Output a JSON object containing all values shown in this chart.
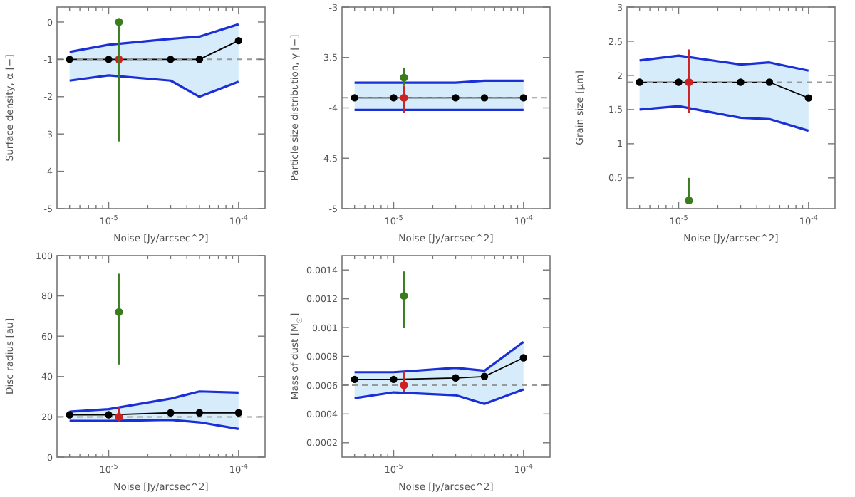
{
  "chart_data": [
    {
      "type": "line",
      "xlabel": "Noise [Jy/arcsec^2]",
      "ylabel": "Surface density, α [−]",
      "log": "x",
      "grid": false,
      "marker": "circle",
      "xlim": [
        4e-06,
        0.00016
      ],
      "xticks": [
        {
          "value": 5e-06,
          "label": null
        },
        {
          "value": 6e-06,
          "label": null
        },
        {
          "value": 7e-06,
          "label": null
        },
        {
          "value": 8e-06,
          "label": null
        },
        {
          "value": 9e-06,
          "label": null
        },
        {
          "value": 1e-05,
          "label": "10$^{-5}$"
        },
        {
          "value": 2e-05,
          "label": null
        },
        {
          "value": 3e-05,
          "label": null
        },
        {
          "value": 4e-05,
          "label": null
        },
        {
          "value": 5e-05,
          "label": null
        },
        {
          "value": 6e-05,
          "label": null
        },
        {
          "value": 7e-05,
          "label": null
        },
        {
          "value": 8e-05,
          "label": null
        },
        {
          "value": 9e-05,
          "label": null
        },
        {
          "value": 0.0001,
          "label": "10$^{-4}$"
        }
      ],
      "ylim": [
        -5,
        0.4
      ],
      "yticks": [
        -5,
        -4,
        -3,
        -2,
        -1,
        0
      ],
      "ref_lines": [
        {
          "axis": "y",
          "value": -1,
          "color": "#999999",
          "line_style": "dashed"
        }
      ],
      "series": [
        {
          "type": "line",
          "color": "#000000",
          "x": [
            5e-06,
            1e-05,
            3e-05,
            5e-05,
            0.0001
          ],
          "values": [
            -1,
            -1,
            -1,
            -1,
            -0.5
          ],
          "lower": [
            -1.57,
            -1.43,
            -1.57,
            -2.0,
            -1.6
          ],
          "upper": [
            -0.8,
            -0.61,
            -0.45,
            -0.39,
            -0.06
          ]
        },
        {
          "type": "line",
          "color": "#1a2fd6",
          "marker": "none",
          "x": [
            5e-06,
            1e-05,
            3e-05,
            5e-05,
            0.0001
          ],
          "values": [
            -1.57,
            -1.43,
            -1.57,
            -2.0,
            -1.6
          ]
        },
        {
          "type": "line",
          "color": "#1a2fd6",
          "marker": "none",
          "x": [
            5e-06,
            1e-05,
            3e-05,
            5e-05,
            0.0001
          ],
          "values": [
            -0.8,
            -0.61,
            -0.45,
            -0.39,
            -0.06
          ]
        },
        {
          "type": "scatter",
          "color": "#cc2222",
          "x": [
            1.2e-05
          ],
          "values": [
            -1
          ],
          "errors": [
            null
          ]
        },
        {
          "type": "scatter",
          "color": "#3a7d1e",
          "x": [
            1.2e-05
          ],
          "values": [
            0
          ],
          "errors": [
            [
              -3.2,
              0
            ]
          ]
        }
      ]
    },
    {
      "type": "line",
      "xlabel": "Noise [Jy/arcsec^2]",
      "ylabel": "Particle size distribution, γ [−]",
      "log": "x",
      "grid": false,
      "marker": "circle",
      "xlim": [
        4e-06,
        0.00016
      ],
      "xticks": [
        {
          "value": 5e-06,
          "label": null
        },
        {
          "value": 6e-06,
          "label": null
        },
        {
          "value": 7e-06,
          "label": null
        },
        {
          "value": 8e-06,
          "label": null
        },
        {
          "value": 9e-06,
          "label": null
        },
        {
          "value": 1e-05,
          "label": "10$^{-5}$"
        },
        {
          "value": 2e-05,
          "label": null
        },
        {
          "value": 3e-05,
          "label": null
        },
        {
          "value": 4e-05,
          "label": null
        },
        {
          "value": 5e-05,
          "label": null
        },
        {
          "value": 6e-05,
          "label": null
        },
        {
          "value": 7e-05,
          "label": null
        },
        {
          "value": 8e-05,
          "label": null
        },
        {
          "value": 9e-05,
          "label": null
        },
        {
          "value": 0.0001,
          "label": "10$^{-4}$"
        }
      ],
      "ylim": [
        -5,
        -3
      ],
      "yticks": [
        -5,
        -4.5,
        -4,
        -3.5,
        -3
      ],
      "ref_lines": [
        {
          "axis": "y",
          "value": -3.9,
          "color": "#999999",
          "line_style": "dashed"
        }
      ],
      "series": [
        {
          "type": "line",
          "color": "#000000",
          "x": [
            5e-06,
            1e-05,
            3e-05,
            5e-05,
            0.0001
          ],
          "values": [
            -3.9,
            -3.9,
            -3.9,
            -3.9,
            -3.9
          ],
          "lower": [
            -4.02,
            -4.02,
            -4.02,
            -4.02,
            -4.02
          ],
          "upper": [
            -3.75,
            -3.75,
            -3.75,
            -3.73,
            -3.73
          ]
        },
        {
          "type": "line",
          "color": "#1a2fd6",
          "marker": "none",
          "x": [
            5e-06,
            1e-05,
            3e-05,
            5e-05,
            0.0001
          ],
          "values": [
            -4.02,
            -4.02,
            -4.02,
            -4.02,
            -4.02
          ]
        },
        {
          "type": "line",
          "color": "#1a2fd6",
          "marker": "none",
          "x": [
            5e-06,
            1e-05,
            3e-05,
            5e-05,
            0.0001
          ],
          "values": [
            -3.75,
            -3.75,
            -3.75,
            -3.73,
            -3.73
          ]
        },
        {
          "type": "scatter",
          "color": "#cc2222",
          "x": [
            1.2e-05
          ],
          "values": [
            -3.9
          ],
          "errors": [
            [
              -4.05,
              -3.78
            ]
          ]
        },
        {
          "type": "scatter",
          "color": "#3a7d1e",
          "x": [
            1.2e-05
          ],
          "values": [
            -3.7
          ],
          "errors": [
            [
              -3.78,
              -3.6
            ]
          ]
        }
      ]
    },
    {
      "type": "line",
      "xlabel": "Noise [Jy/arcsec^2]",
      "ylabel": "Grain size [μm]",
      "log": "x",
      "grid": false,
      "marker": "circle",
      "xlim": [
        4e-06,
        0.00016
      ],
      "xticks": [
        {
          "value": 5e-06,
          "label": null
        },
        {
          "value": 6e-06,
          "label": null
        },
        {
          "value": 7e-06,
          "label": null
        },
        {
          "value": 8e-06,
          "label": null
        },
        {
          "value": 9e-06,
          "label": null
        },
        {
          "value": 1e-05,
          "label": "10$^{-5}$"
        },
        {
          "value": 2e-05,
          "label": null
        },
        {
          "value": 3e-05,
          "label": null
        },
        {
          "value": 4e-05,
          "label": null
        },
        {
          "value": 5e-05,
          "label": null
        },
        {
          "value": 6e-05,
          "label": null
        },
        {
          "value": 7e-05,
          "label": null
        },
        {
          "value": 8e-05,
          "label": null
        },
        {
          "value": 9e-05,
          "label": null
        },
        {
          "value": 0.0001,
          "label": "10$^{-4}$"
        }
      ],
      "ylim": [
        0.05,
        3
      ],
      "yticks": [
        0.5,
        1.0,
        1.5,
        2.0,
        2.5,
        3.0
      ],
      "ref_lines": [
        {
          "axis": "y",
          "value": 1.9,
          "color": "#999999",
          "line_style": "dashed"
        }
      ],
      "series": [
        {
          "type": "line",
          "color": "#000000",
          "x": [
            5e-06,
            1e-05,
            3e-05,
            5e-05,
            0.0001
          ],
          "values": [
            1.9,
            1.9,
            1.9,
            1.9,
            1.67
          ],
          "lower": [
            1.5,
            1.55,
            1.38,
            1.36,
            1.19
          ],
          "upper": [
            2.22,
            2.29,
            2.16,
            2.19,
            2.07
          ]
        },
        {
          "type": "line",
          "color": "#1a2fd6",
          "marker": "none",
          "x": [
            5e-06,
            1e-05,
            3e-05,
            5e-05,
            0.0001
          ],
          "values": [
            1.5,
            1.55,
            1.38,
            1.36,
            1.19
          ]
        },
        {
          "type": "line",
          "color": "#1a2fd6",
          "marker": "none",
          "x": [
            5e-06,
            1e-05,
            3e-05,
            5e-05,
            0.0001
          ],
          "values": [
            2.22,
            2.29,
            2.16,
            2.19,
            2.07
          ]
        },
        {
          "type": "scatter",
          "color": "#cc2222",
          "x": [
            1.2e-05
          ],
          "values": [
            1.9
          ],
          "errors": [
            [
              1.45,
              2.38
            ]
          ]
        },
        {
          "type": "scatter",
          "color": "#3a7d1e",
          "x": [
            1.2e-05
          ],
          "values": [
            0.17
          ],
          "errors": [
            [
              0.12,
              0.5
            ]
          ]
        }
      ]
    },
    {
      "type": "line",
      "xlabel": "Noise [Jy/arcsec^2]",
      "ylabel": "Disc radius [au]",
      "log": "x",
      "grid": false,
      "marker": "circle",
      "xlim": [
        4e-06,
        0.00016
      ],
      "xticks": [
        {
          "value": 5e-06,
          "label": null
        },
        {
          "value": 6e-06,
          "label": null
        },
        {
          "value": 7e-06,
          "label": null
        },
        {
          "value": 8e-06,
          "label": null
        },
        {
          "value": 9e-06,
          "label": null
        },
        {
          "value": 1e-05,
          "label": "10$^{-5}$"
        },
        {
          "value": 2e-05,
          "label": null
        },
        {
          "value": 3e-05,
          "label": null
        },
        {
          "value": 4e-05,
          "label": null
        },
        {
          "value": 5e-05,
          "label": null
        },
        {
          "value": 6e-05,
          "label": null
        },
        {
          "value": 7e-05,
          "label": null
        },
        {
          "value": 8e-05,
          "label": null
        },
        {
          "value": 9e-05,
          "label": null
        },
        {
          "value": 0.0001,
          "label": "10$^{-4}$"
        }
      ],
      "ylim": [
        0,
        100
      ],
      "yticks": [
        0,
        20,
        40,
        60,
        80,
        100
      ],
      "ref_lines": [
        {
          "axis": "y",
          "value": 20,
          "color": "#999999",
          "line_style": "dashed"
        }
      ],
      "series": [
        {
          "type": "line",
          "color": "#000000",
          "x": [
            5e-06,
            1e-05,
            3e-05,
            5e-05,
            0.0001
          ],
          "values": [
            21,
            21,
            22,
            22,
            22
          ],
          "lower": [
            18,
            18,
            18.5,
            17.3,
            14
          ],
          "upper": [
            22.6,
            23.8,
            29,
            32.6,
            32
          ]
        },
        {
          "type": "line",
          "color": "#1a2fd6",
          "marker": "none",
          "x": [
            5e-06,
            1e-05,
            3e-05,
            5e-05,
            0.0001
          ],
          "values": [
            18,
            18,
            18.5,
            17.3,
            14
          ]
        },
        {
          "type": "line",
          "color": "#1a2fd6",
          "marker": "none",
          "x": [
            5e-06,
            1e-05,
            3e-05,
            5e-05,
            0.0001
          ],
          "values": [
            22.6,
            23.8,
            29,
            32.6,
            32
          ]
        },
        {
          "type": "scatter",
          "color": "#cc2222",
          "x": [
            1.2e-05
          ],
          "values": [
            20
          ],
          "errors": [
            [
              17.5,
              25
            ]
          ]
        },
        {
          "type": "scatter",
          "color": "#3a7d1e",
          "x": [
            1.2e-05
          ],
          "values": [
            72
          ],
          "errors": [
            [
              46,
              91
            ]
          ]
        }
      ]
    },
    {
      "type": "line",
      "xlabel": "Noise [Jy/arcsec^2]",
      "ylabel": "Mass of dust [M$_{☉}$]",
      "log": "x",
      "grid": false,
      "marker": "circle",
      "xlim": [
        4e-06,
        0.00016
      ],
      "xticks": [
        {
          "value": 5e-06,
          "label": null
        },
        {
          "value": 6e-06,
          "label": null
        },
        {
          "value": 7e-06,
          "label": null
        },
        {
          "value": 8e-06,
          "label": null
        },
        {
          "value": 9e-06,
          "label": null
        },
        {
          "value": 1e-05,
          "label": "10$^{-5}$"
        },
        {
          "value": 2e-05,
          "label": null
        },
        {
          "value": 3e-05,
          "label": null
        },
        {
          "value": 4e-05,
          "label": null
        },
        {
          "value": 5e-05,
          "label": null
        },
        {
          "value": 6e-05,
          "label": null
        },
        {
          "value": 7e-05,
          "label": null
        },
        {
          "value": 8e-05,
          "label": null
        },
        {
          "value": 9e-05,
          "label": null
        },
        {
          "value": 0.0001,
          "label": "10$^{-4}$"
        }
      ],
      "ylim": [
        0.0001,
        0.0015
      ],
      "yticks": [
        0.0002,
        0.0004,
        0.0006,
        0.0008,
        0.001,
        0.0012,
        0.0014
      ],
      "ref_lines": [
        {
          "axis": "y",
          "value": 0.0006,
          "color": "#999999",
          "line_style": "dashed"
        }
      ],
      "series": [
        {
          "type": "line",
          "color": "#000000",
          "x": [
            5e-06,
            1e-05,
            3e-05,
            5e-05,
            0.0001
          ],
          "values": [
            0.00064,
            0.00064,
            0.00065,
            0.00066,
            0.00079
          ],
          "lower": [
            0.00051,
            0.00055,
            0.00053,
            0.00047,
            0.00057
          ],
          "upper": [
            0.00069,
            0.00069,
            0.00072,
            0.0007,
            0.0009
          ]
        },
        {
          "type": "line",
          "color": "#1a2fd6",
          "marker": "none",
          "x": [
            5e-06,
            1e-05,
            3e-05,
            5e-05,
            0.0001
          ],
          "values": [
            0.00051,
            0.00055,
            0.00053,
            0.00047,
            0.00057
          ]
        },
        {
          "type": "line",
          "color": "#1a2fd6",
          "marker": "none",
          "x": [
            5e-06,
            1e-05,
            3e-05,
            5e-05,
            0.0001
          ],
          "values": [
            0.00069,
            0.00069,
            0.00072,
            0.0007,
            0.0009
          ]
        },
        {
          "type": "scatter",
          "color": "#cc2222",
          "x": [
            1.2e-05
          ],
          "values": [
            0.0006
          ],
          "errors": [
            [
              0.00055,
              0.0007
            ]
          ]
        },
        {
          "type": "scatter",
          "color": "#3a7d1e",
          "x": [
            1.2e-05
          ],
          "values": [
            0.00122
          ],
          "errors": [
            [
              0.001,
              0.00139
            ]
          ]
        }
      ]
    }
  ]
}
